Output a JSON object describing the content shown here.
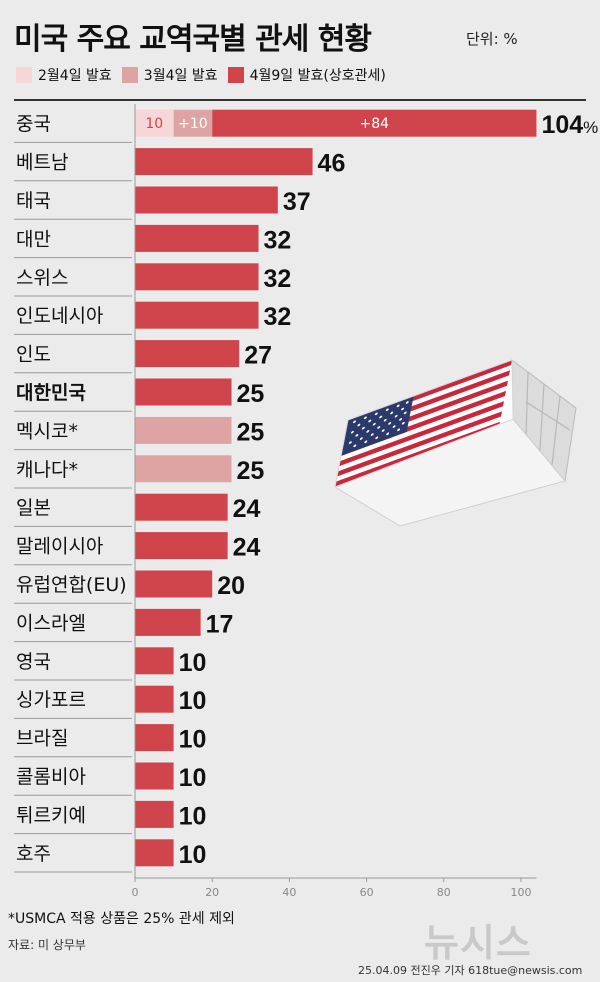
{
  "title": "미국 주요 교역국별 관세 현황",
  "unit_label": "단위: %",
  "legend": [
    {
      "label": "2월4일 발효",
      "color": "#f6d6d6"
    },
    {
      "label": "3월4일 발효",
      "color": "#dea4a4"
    },
    {
      "label": "4월9일 발효(상호관세)",
      "color": "#d0454b"
    }
  ],
  "footnote": "*USMCA 적용 상품은 25% 관세 제외",
  "source": "자료: 미 상무부",
  "watermark": "뉴시스",
  "credit": "25.04.09 전진우 기자 618tue@newsis.com",
  "chart_data": {
    "type": "bar",
    "orientation": "horizontal",
    "stacked": true,
    "xlim": [
      0,
      104
    ],
    "xticks": [
      0,
      20,
      40,
      60,
      80,
      100
    ],
    "grid": false,
    "colors": {
      "feb": "#f6d6d6",
      "mar": "#dea4a4",
      "apr": "#d0454b"
    },
    "categories": [
      "중국",
      "베트남",
      "태국",
      "대만",
      "스위스",
      "인도네시아",
      "인도",
      "대한민국",
      "멕시코*",
      "캐나다*",
      "일본",
      "말레이시아",
      "유럽연합(EU)",
      "이스라엘",
      "영국",
      "싱가포르",
      "브라질",
      "콜롬비아",
      "튀르키예",
      "호주"
    ],
    "bold_category": "대한민국",
    "series": [
      {
        "name": "2월4일 발효",
        "values": [
          10,
          0,
          0,
          0,
          0,
          0,
          0,
          0,
          0,
          0,
          0,
          0,
          0,
          0,
          0,
          0,
          0,
          0,
          0,
          0
        ]
      },
      {
        "name": "3월4일 발효",
        "values": [
          10,
          0,
          0,
          0,
          0,
          0,
          0,
          0,
          25,
          25,
          0,
          0,
          0,
          0,
          0,
          0,
          0,
          0,
          0,
          0
        ]
      },
      {
        "name": "4월9일 발효(상호관세)",
        "values": [
          84,
          46,
          37,
          32,
          32,
          32,
          27,
          25,
          0,
          0,
          24,
          24,
          20,
          17,
          10,
          10,
          10,
          10,
          10,
          10
        ]
      }
    ],
    "segment_labels": [
      {
        "row": 0,
        "texts": [
          "10",
          "+10",
          "+84"
        ]
      }
    ],
    "totals": [
      104,
      46,
      37,
      32,
      32,
      32,
      27,
      25,
      25,
      25,
      24,
      24,
      20,
      17,
      10,
      10,
      10,
      10,
      10,
      10
    ],
    "total_suffix_first": "%"
  }
}
